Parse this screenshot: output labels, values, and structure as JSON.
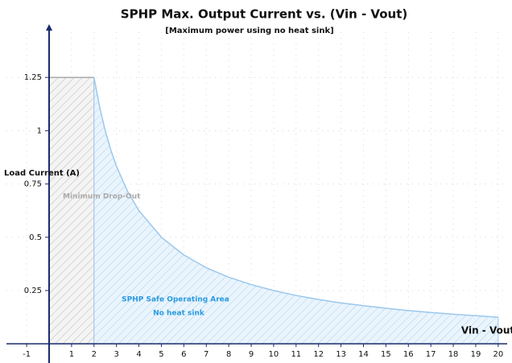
{
  "chart_data": {
    "type": "area",
    "title": "SPHP Max. Output Current vs. (Vin - Vout)",
    "subtitle": "[Maximum power using no heat sink]",
    "x_label": "Vin - Vout",
    "y_label": "Load Current (A)",
    "xlim": [
      -1.9,
      20.4
    ],
    "ylim": [
      -0.09,
      1.5
    ],
    "xticks": [
      -1,
      1,
      2,
      3,
      4,
      5,
      6,
      7,
      8,
      9,
      10,
      11,
      12,
      13,
      14,
      15,
      16,
      17,
      18,
      19,
      20
    ],
    "yticks": [
      0.25,
      0.5,
      0.75,
      1,
      1.25
    ],
    "grid": true,
    "series": [
      {
        "color": "#aaaaaa",
        "x": [
          0,
          2
        ],
        "values": [
          1.25,
          1.25
        ]
      },
      {
        "color": "#9cc8ec",
        "x": [
          2,
          2.25,
          2.5,
          2.75,
          3,
          3.5,
          4,
          5,
          6,
          7,
          8,
          9,
          10,
          11,
          12,
          13,
          14,
          15,
          16,
          17,
          18,
          19,
          20
        ],
        "values": [
          1.25,
          1.111,
          1.0,
          0.909,
          0.833,
          0.714,
          0.625,
          0.5,
          0.417,
          0.357,
          0.3125,
          0.278,
          0.25,
          0.227,
          0.208,
          0.192,
          0.179,
          0.167,
          0.156,
          0.147,
          0.139,
          0.132,
          0.125
        ]
      }
    ],
    "annotations": [
      {
        "text": "Minimum Drop-Out",
        "color": "#aaaaaa"
      },
      {
        "text": "SPHP Safe Operating Area",
        "color": "#2a9ae0"
      },
      {
        "text": "No heat sink",
        "color": "#2a9ae0"
      }
    ]
  }
}
